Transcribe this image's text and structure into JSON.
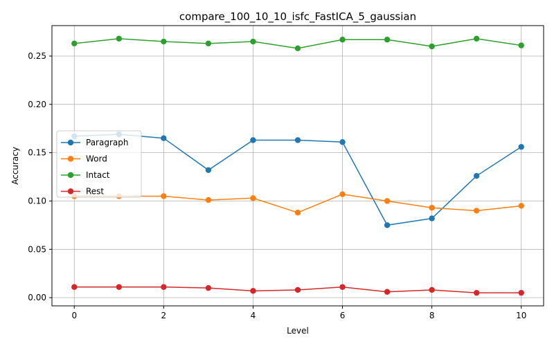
{
  "chart_data": {
    "type": "line",
    "title": "compare_100_10_10_isfc_FastICA_5_gaussian",
    "xlabel": "Level",
    "ylabel": "Accuracy",
    "x": [
      0,
      1,
      2,
      3,
      4,
      5,
      6,
      7,
      8,
      9,
      10
    ],
    "xlim": [
      -0.5,
      10.5
    ],
    "ylim": [
      -0.0085,
      0.2815
    ],
    "xticks": [
      0,
      2,
      4,
      6,
      8,
      10
    ],
    "xtick_labels": [
      "0",
      "2",
      "4",
      "6",
      "8",
      "10"
    ],
    "yticks": [
      0.0,
      0.05,
      0.1,
      0.15,
      0.2,
      0.25
    ],
    "ytick_labels": [
      "0.00",
      "0.05",
      "0.10",
      "0.15",
      "0.20",
      "0.25"
    ],
    "grid": true,
    "legend_position": "center-left",
    "series": [
      {
        "name": "Paragraph",
        "color": "#1f77b4",
        "values": [
          0.167,
          0.169,
          0.165,
          0.132,
          0.163,
          0.163,
          0.161,
          0.075,
          0.082,
          0.126,
          0.156
        ]
      },
      {
        "name": "Word",
        "color": "#ff7f0e",
        "values": [
          0.105,
          0.105,
          0.105,
          0.101,
          0.103,
          0.088,
          0.107,
          0.1,
          0.093,
          0.09,
          0.095
        ]
      },
      {
        "name": "Intact",
        "color": "#2ca02c",
        "values": [
          0.263,
          0.268,
          0.265,
          0.263,
          0.265,
          0.258,
          0.267,
          0.267,
          0.26,
          0.268,
          0.261
        ]
      },
      {
        "name": "Rest",
        "color": "#d62728",
        "values": [
          0.011,
          0.011,
          0.011,
          0.01,
          0.007,
          0.008,
          0.011,
          0.006,
          0.008,
          0.005,
          0.005
        ]
      }
    ]
  }
}
